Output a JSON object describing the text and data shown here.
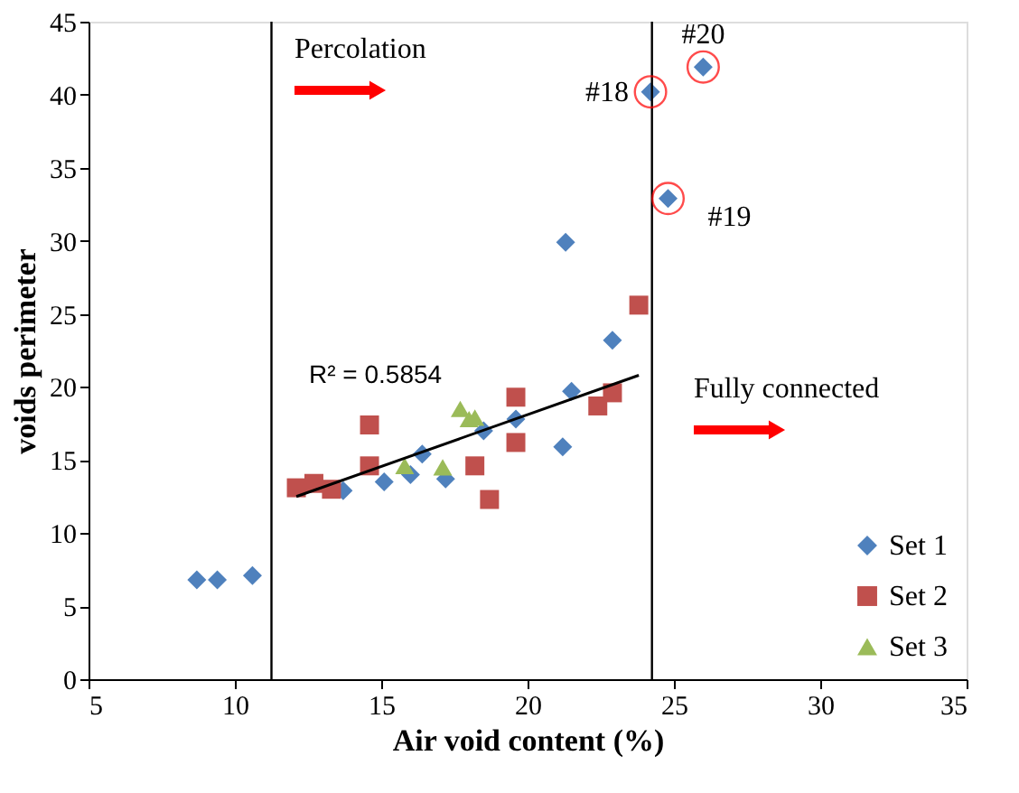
{
  "chart_data": {
    "type": "scatter",
    "xlabel": "Air void content (%)",
    "ylabel": "voids perimeter",
    "xlim": [
      5,
      35
    ],
    "xticks": [
      5,
      10,
      15,
      20,
      25,
      30,
      35
    ],
    "ylim": [
      0,
      45
    ],
    "yticks": [
      0,
      5,
      10,
      15,
      20,
      25,
      30,
      35,
      40,
      45
    ],
    "grid": false,
    "legend": "bottom right",
    "series": [
      {
        "name": "Set 1",
        "color": "#4f81bd",
        "marker": "diamond",
        "x": [
          8.7,
          9.4,
          10.6,
          13.7,
          15.1,
          16.0,
          16.4,
          17.2,
          18.5,
          19.6,
          21.2,
          21.5,
          22.9,
          21.3,
          24.2,
          26.0,
          24.8
        ],
        "values": [
          6.8,
          6.8,
          7.1,
          12.9,
          13.5,
          14.0,
          15.4,
          13.7,
          17.0,
          17.8,
          15.9,
          19.7,
          23.2,
          29.9,
          40.2,
          41.9,
          32.9
        ]
      },
      {
        "name": "Set 2",
        "color": "#c0504d",
        "marker": "square",
        "x": [
          12.1,
          12.7,
          13.3,
          14.6,
          14.6,
          18.2,
          18.7,
          19.6,
          19.6,
          22.4,
          22.9,
          23.8
        ],
        "values": [
          13.1,
          13.4,
          13.0,
          17.4,
          14.6,
          14.6,
          12.3,
          19.3,
          16.2,
          18.7,
          19.6,
          25.6
        ]
      },
      {
        "name": "Set 3",
        "color": "#9bbb59",
        "marker": "triangle",
        "x": [
          15.8,
          17.1,
          17.7,
          18.0,
          18.2
        ],
        "values": [
          14.6,
          14.5,
          18.5,
          17.8,
          17.9
        ]
      },
      {
        "type": "line",
        "color": "#000000",
        "x": [
          12.1,
          23.8
        ],
        "values": [
          12.5,
          20.8
        ]
      }
    ],
    "ref_lines": [
      {
        "axis": "x",
        "value": 11.25,
        "color": "#000000"
      },
      {
        "axis": "x",
        "value": 24.25,
        "color": "#000000"
      }
    ],
    "annotations": [
      "Percolation",
      {
        "text": "#18",
        "x": 24.2,
        "y": 40.2
      },
      {
        "text": "#20",
        "x": 26.0,
        "y": 41.9
      },
      {
        "text": "#19",
        "x": 24.8,
        "y": 32.9
      },
      "Fully connected",
      "R² = 0.5854"
    ]
  }
}
